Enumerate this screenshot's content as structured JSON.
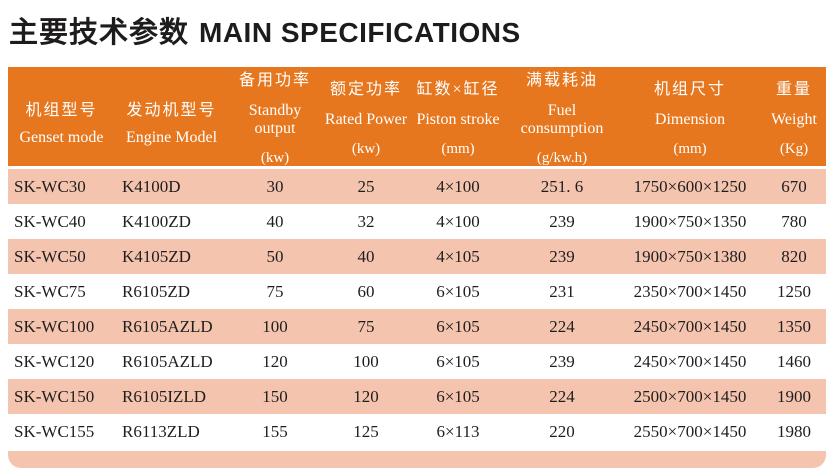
{
  "title": {
    "zh": "主要技术参数",
    "en": "MAIN SPECIFICATIONS"
  },
  "colors": {
    "header_bg": "#e6771e",
    "row_alt_bg": "#f5c4ae",
    "header_text": "#ffffff",
    "body_text": "#1e1e1e",
    "title_text": "#1d1b1b"
  },
  "table": {
    "columns": [
      {
        "zh": "机组型号",
        "en": "Genset mode",
        "unit": ""
      },
      {
        "zh": "发动机型号",
        "en": "Engine Model",
        "unit": ""
      },
      {
        "zh": "备用功率",
        "en": "Standby output",
        "unit": "(kw)"
      },
      {
        "zh": "额定功率",
        "en": "Rated Power",
        "unit": "(kw)"
      },
      {
        "zh": "缸数×缸径",
        "en": "Piston stroke",
        "unit": "(mm)"
      },
      {
        "zh": "满载耗油",
        "en": "Fuel consumption",
        "unit": "(g/kw.h)"
      },
      {
        "zh": "机组尺寸",
        "en": "Dimension",
        "unit": "(mm)"
      },
      {
        "zh": "重量",
        "en": "Weight",
        "unit": "(Kg)"
      }
    ],
    "rows": [
      [
        "SK-WC30",
        "K4100D",
        "30",
        "25",
        "4×100",
        "251. 6",
        "1750×600×1250",
        "670"
      ],
      [
        "SK-WC40",
        "K4100ZD",
        "40",
        "32",
        "4×100",
        "239",
        "1900×750×1350",
        "780"
      ],
      [
        "SK-WC50",
        "K4105ZD",
        "50",
        "40",
        "4×105",
        "239",
        "1900×750×1380",
        "820"
      ],
      [
        "SK-WC75",
        "R6105ZD",
        "75",
        "60",
        "6×105",
        "231",
        "2350×700×1450",
        "1250"
      ],
      [
        "SK-WC100",
        "R6105AZLD",
        "100",
        "75",
        "6×105",
        "224",
        "2450×700×1450",
        "1350"
      ],
      [
        "SK-WC120",
        "R6105AZLD",
        "120",
        "100",
        "6×105",
        "239",
        "2450×700×1450",
        "1460"
      ],
      [
        "SK-WC150",
        "R6105IZLD",
        "150",
        "120",
        "6×105",
        "224",
        "2500×700×1450",
        "1900"
      ],
      [
        "SK-WC155",
        "R6113ZLD",
        "155",
        "125",
        "6×113",
        "220",
        "2550×700×1450",
        "1980"
      ]
    ]
  }
}
